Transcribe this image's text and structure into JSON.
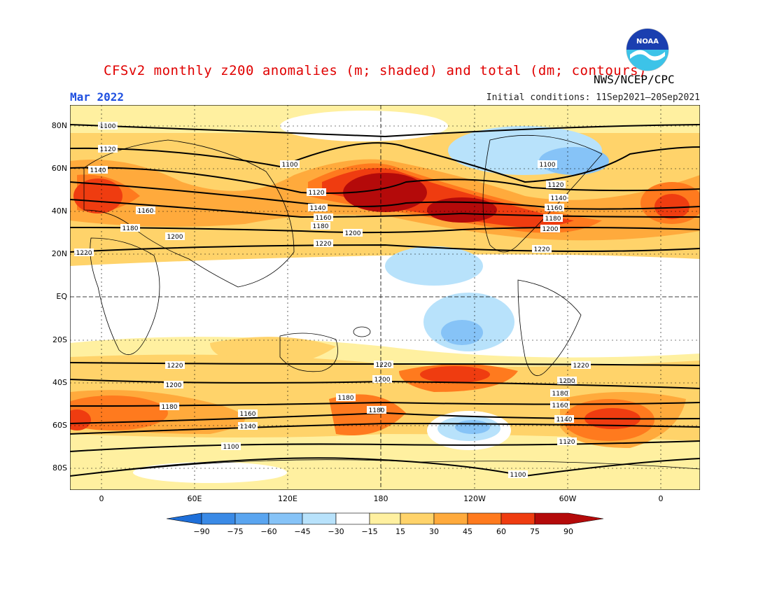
{
  "title": "CFSv2 monthly z200 anomalies (m; shaded) and total (dm; contours)",
  "month": "Mar 2022",
  "initial_conditions": "Initial conditions: 11Sep2021–20Sep2021",
  "agency": "NWS/NCEP/CPC",
  "logo_text": "NOAA",
  "map": {
    "lat_labels": [
      "80N",
      "60N",
      "40N",
      "20N",
      "EQ",
      "20S",
      "40S",
      "60S",
      "80S"
    ],
    "lon_labels": [
      "0",
      "60E",
      "120E",
      "180",
      "120W",
      "60W",
      "0"
    ],
    "contour_labels": [
      "1100",
      "1120",
      "1140",
      "1160",
      "1180",
      "1200",
      "1220"
    ]
  },
  "colorbar": {
    "ticks": [
      "−90",
      "−75",
      "−60",
      "−45",
      "−30",
      "−15",
      "15",
      "30",
      "45",
      "60",
      "75",
      "90"
    ],
    "colors": [
      "#1e6fd9",
      "#3a8ae6",
      "#5aa5f0",
      "#86c3f7",
      "#b8e2fb",
      "#ffffff",
      "#fff0a0",
      "#ffd36a",
      "#ffaa3c",
      "#ff7a1e",
      "#ef3c10",
      "#b40a0a"
    ]
  }
}
